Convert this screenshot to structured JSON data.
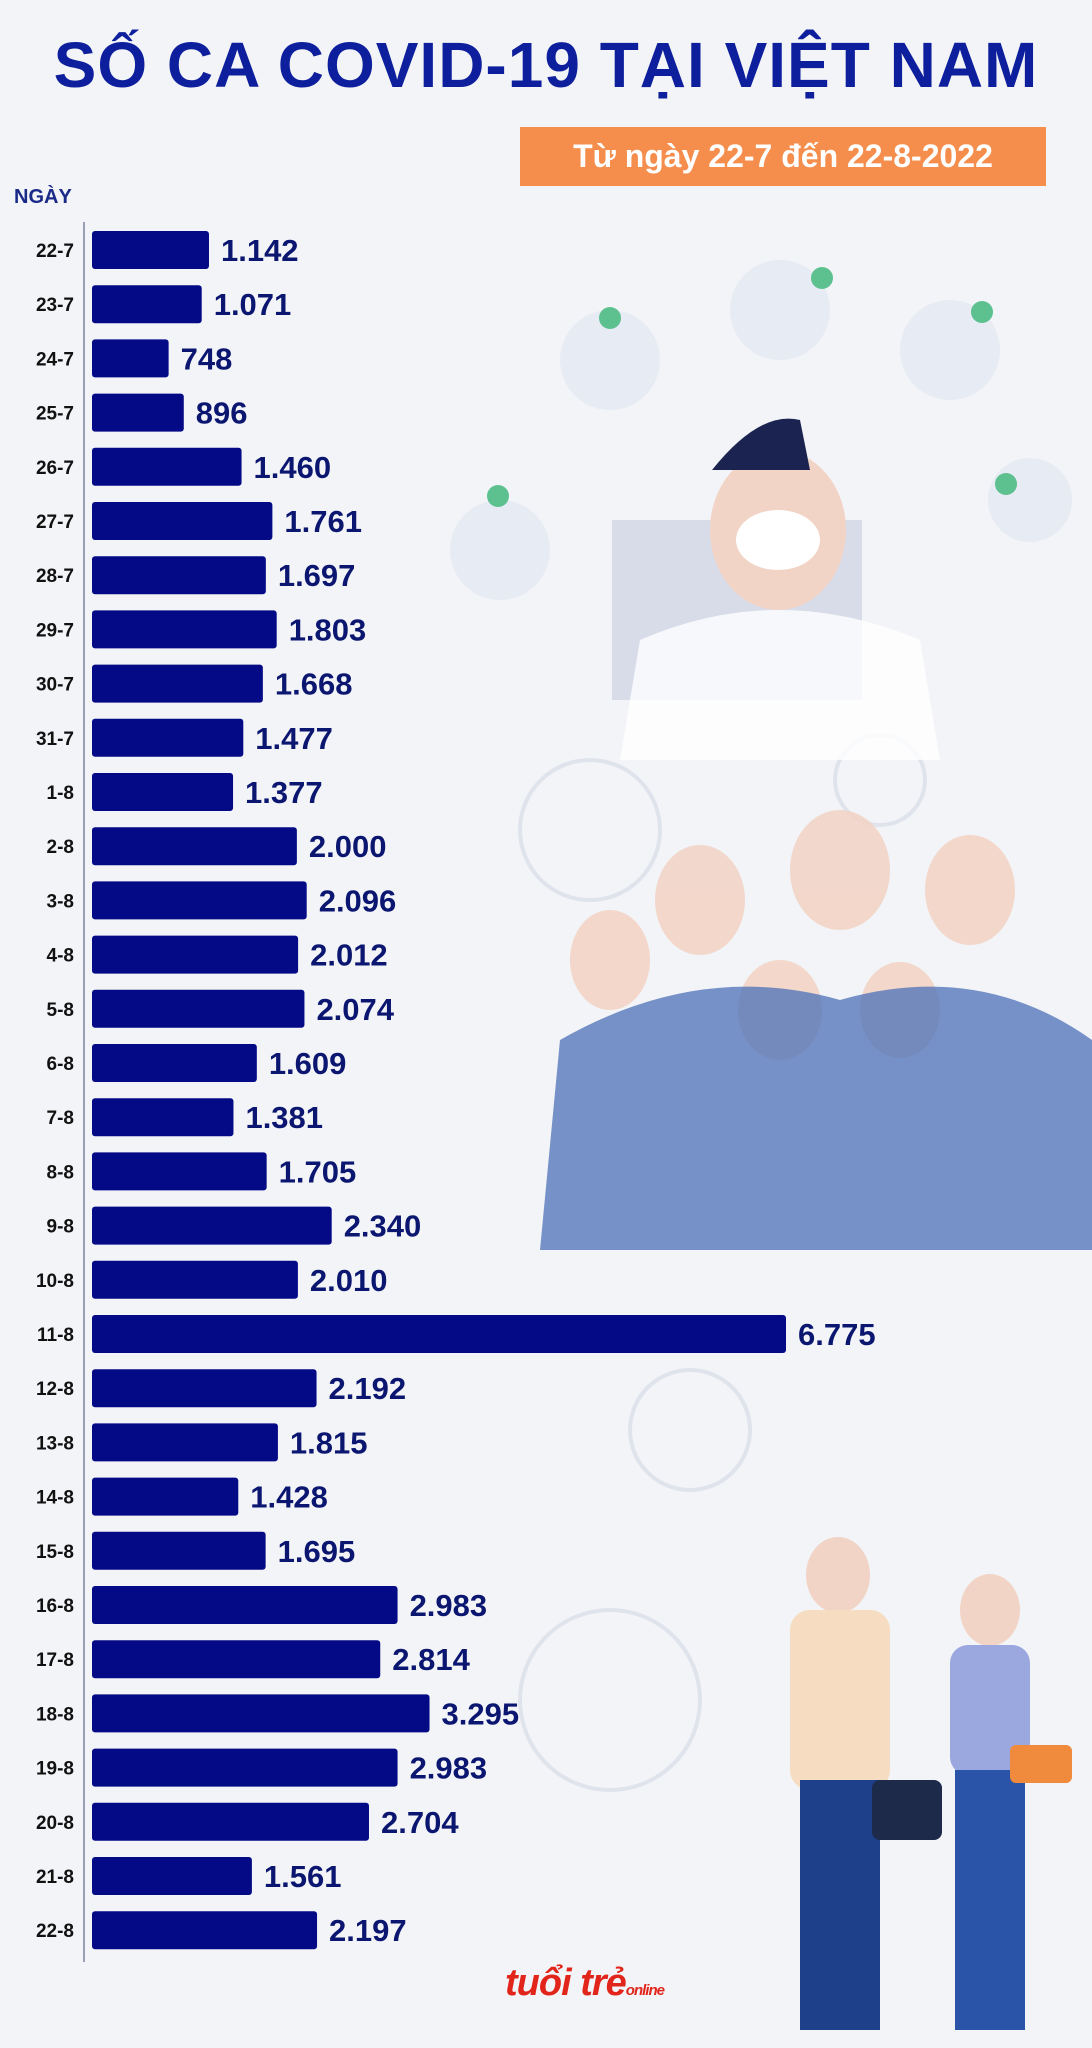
{
  "title": "SỐ CA COVID-19 TẠI VIỆT NAM",
  "subtitle": "Từ ngày 22-7 đến 22-8-2022",
  "logo": {
    "main": "tuổi trẻ",
    "sub": "online"
  },
  "colors": {
    "bar": "#040a86",
    "title": "#0d1f9c",
    "subtitle_bg": "#f58e4c",
    "value_text": "#0b1670"
  },
  "chart_data": {
    "type": "bar",
    "orientation": "horizontal",
    "title": "SỐ CA COVID-19 TẠI VIỆT NAM",
    "subtitle": "Từ ngày 22-7 đến 22-8-2022",
    "xlabel": "",
    "ylabel": "NGÀY",
    "categories": [
      "22-7",
      "23-7",
      "24-7",
      "25-7",
      "26-7",
      "27-7",
      "28-7",
      "29-7",
      "30-7",
      "31-7",
      "1-8",
      "2-8",
      "3-8",
      "4-8",
      "5-8",
      "6-8",
      "7-8",
      "8-8",
      "9-8",
      "10-8",
      "11-8",
      "12-8",
      "13-8",
      "14-8",
      "15-8",
      "16-8",
      "17-8",
      "18-8",
      "19-8",
      "20-8",
      "21-8",
      "22-8"
    ],
    "values": [
      1142,
      1071,
      748,
      896,
      1460,
      1761,
      1697,
      1803,
      1668,
      1477,
      1377,
      2000,
      2096,
      2012,
      2074,
      1609,
      1381,
      1705,
      2340,
      2010,
      6775,
      2192,
      1815,
      1428,
      1695,
      2983,
      2814,
      3295,
      2983,
      2704,
      1561,
      2197
    ],
    "labels": [
      "1.142",
      "1.071",
      "748",
      "896",
      "1.460",
      "1.761",
      "1.697",
      "1.803",
      "1.668",
      "1.477",
      "1.377",
      "2.000",
      "2.096",
      "2.012",
      "2.074",
      "1.609",
      "1.381",
      "1.705",
      "2.340",
      "2.010",
      "6.775",
      "2.192",
      "1.815",
      "1.428",
      "1.695",
      "2.983",
      "2.814",
      "3.295",
      "2.983",
      "2.704",
      "1.561",
      "2.197"
    ],
    "grid": false
  }
}
